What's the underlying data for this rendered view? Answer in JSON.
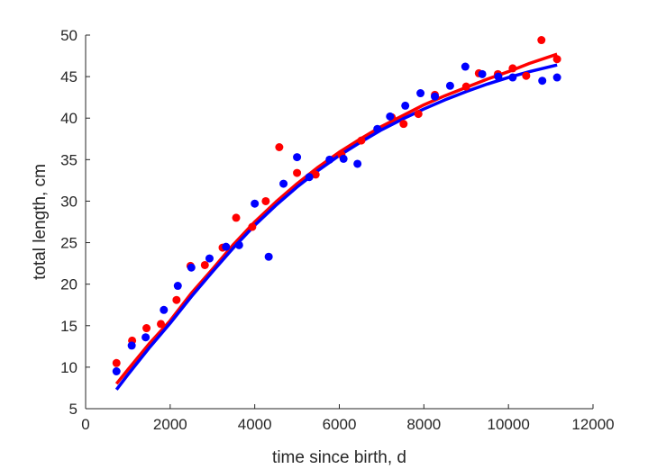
{
  "chart_data": {
    "type": "scatter",
    "title": "",
    "xlabel": "time since birth, d",
    "ylabel": "total length, cm",
    "xlim": [
      0,
      12000
    ],
    "ylim": [
      5,
      50
    ],
    "xticks": [
      0,
      2000,
      4000,
      6000,
      8000,
      10000,
      12000
    ],
    "yticks": [
      5,
      10,
      15,
      20,
      25,
      30,
      35,
      40,
      45,
      50
    ],
    "xtick_labels": [
      "0",
      "2000",
      "4000",
      "6000",
      "8000",
      "10000",
      "12000"
    ],
    "ytick_labels": [
      "5",
      "10",
      "15",
      "20",
      "25",
      "30",
      "35",
      "40",
      "45",
      "50"
    ],
    "grid": false,
    "legend": "none",
    "series": [
      {
        "name": "red data",
        "color": "#ff0000",
        "kind": "points",
        "points": [
          [
            730,
            10.5
          ],
          [
            1100,
            13.2
          ],
          [
            1440,
            14.7
          ],
          [
            1780,
            15.2
          ],
          [
            2150,
            18.1
          ],
          [
            2480,
            22.2
          ],
          [
            2820,
            22.3
          ],
          [
            3240,
            24.4
          ],
          [
            3560,
            28.0
          ],
          [
            3940,
            26.9
          ],
          [
            4260,
            30.0
          ],
          [
            4580,
            36.5
          ],
          [
            5000,
            33.4
          ],
          [
            5440,
            33.2
          ],
          [
            6050,
            35.6
          ],
          [
            6520,
            37.3
          ],
          [
            7240,
            40.1
          ],
          [
            7520,
            39.3
          ],
          [
            7870,
            40.5
          ],
          [
            8260,
            42.8
          ],
          [
            9000,
            43.8
          ],
          [
            9300,
            45.4
          ],
          [
            9750,
            45.3
          ],
          [
            10100,
            46.0
          ],
          [
            10420,
            45.1
          ],
          [
            10780,
            49.4
          ],
          [
            11150,
            47.1
          ]
        ]
      },
      {
        "name": "blue data",
        "color": "#0000ff",
        "kind": "points",
        "points": [
          [
            730,
            9.5
          ],
          [
            1090,
            12.6
          ],
          [
            1420,
            13.6
          ],
          [
            1850,
            16.9
          ],
          [
            2180,
            19.8
          ],
          [
            2500,
            22.0
          ],
          [
            2930,
            23.1
          ],
          [
            3320,
            24.5
          ],
          [
            3630,
            24.7
          ],
          [
            4000,
            29.7
          ],
          [
            4330,
            23.3
          ],
          [
            4680,
            32.1
          ],
          [
            5000,
            35.3
          ],
          [
            5290,
            32.9
          ],
          [
            5770,
            35.0
          ],
          [
            6100,
            35.1
          ],
          [
            6430,
            34.5
          ],
          [
            6900,
            38.7
          ],
          [
            7200,
            40.2
          ],
          [
            7560,
            41.5
          ],
          [
            7920,
            43.0
          ],
          [
            8260,
            42.6
          ],
          [
            8620,
            43.9
          ],
          [
            8980,
            46.2
          ],
          [
            9380,
            45.3
          ],
          [
            9760,
            45.0
          ],
          [
            10100,
            44.9
          ],
          [
            10800,
            44.5
          ],
          [
            11150,
            44.9
          ]
        ]
      },
      {
        "name": "red fit",
        "color": "#ff0000",
        "kind": "line",
        "points": [
          [
            730,
            8.0
          ],
          [
            1000,
            9.7
          ],
          [
            1500,
            12.8
          ],
          [
            2000,
            15.6
          ],
          [
            2500,
            18.9
          ],
          [
            3000,
            21.8
          ],
          [
            3500,
            24.8
          ],
          [
            4000,
            27.5
          ],
          [
            4500,
            29.9
          ],
          [
            5000,
            32.1
          ],
          [
            5500,
            34.1
          ],
          [
            6000,
            35.9
          ],
          [
            6500,
            37.5
          ],
          [
            7000,
            39.0
          ],
          [
            7500,
            40.3
          ],
          [
            8000,
            41.6
          ],
          [
            8500,
            42.7
          ],
          [
            9000,
            43.7
          ],
          [
            9500,
            44.7
          ],
          [
            10000,
            45.6
          ],
          [
            10500,
            46.6
          ],
          [
            11150,
            47.7
          ]
        ]
      },
      {
        "name": "blue fit",
        "color": "#0000ff",
        "kind": "line",
        "points": [
          [
            730,
            7.3
          ],
          [
            1000,
            9.1
          ],
          [
            1500,
            12.3
          ],
          [
            2000,
            15.3
          ],
          [
            2500,
            18.5
          ],
          [
            3000,
            21.5
          ],
          [
            3500,
            24.4
          ],
          [
            4000,
            27.1
          ],
          [
            4500,
            29.5
          ],
          [
            5000,
            31.7
          ],
          [
            5500,
            33.7
          ],
          [
            6000,
            35.5
          ],
          [
            6500,
            37.1
          ],
          [
            7000,
            38.6
          ],
          [
            7500,
            39.9
          ],
          [
            8000,
            41.1
          ],
          [
            8500,
            42.2
          ],
          [
            9000,
            43.2
          ],
          [
            9500,
            44.1
          ],
          [
            10000,
            44.9
          ],
          [
            10500,
            45.6
          ],
          [
            11150,
            46.4
          ]
        ]
      }
    ]
  }
}
